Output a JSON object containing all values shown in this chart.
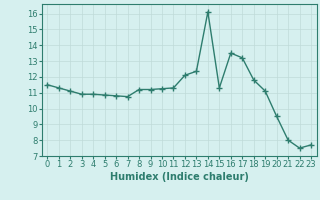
{
  "x": [
    0,
    1,
    2,
    3,
    4,
    5,
    6,
    7,
    8,
    9,
    10,
    11,
    12,
    13,
    14,
    15,
    16,
    17,
    18,
    19,
    20,
    21,
    22,
    23
  ],
  "y": [
    11.5,
    11.3,
    11.1,
    10.9,
    10.9,
    10.85,
    10.8,
    10.75,
    11.2,
    11.2,
    11.25,
    11.3,
    12.1,
    12.35,
    16.1,
    11.3,
    13.5,
    13.2,
    11.8,
    11.1,
    9.5,
    8.0,
    7.5,
    7.7
  ],
  "line_color": "#2e7d6e",
  "marker": "+",
  "marker_size": 4,
  "bg_color": "#d6f0ef",
  "grid_color": "#c0dbd9",
  "xlabel": "Humidex (Indice chaleur)",
  "ylim": [
    7,
    16.6
  ],
  "xlim": [
    -0.5,
    23.5
  ],
  "yticks": [
    7,
    8,
    9,
    10,
    11,
    12,
    13,
    14,
    15,
    16
  ],
  "xticks": [
    0,
    1,
    2,
    3,
    4,
    5,
    6,
    7,
    8,
    9,
    10,
    11,
    12,
    13,
    14,
    15,
    16,
    17,
    18,
    19,
    20,
    21,
    22,
    23
  ],
  "xlabel_fontsize": 7,
  "tick_fontsize": 6,
  "linewidth": 1.0
}
